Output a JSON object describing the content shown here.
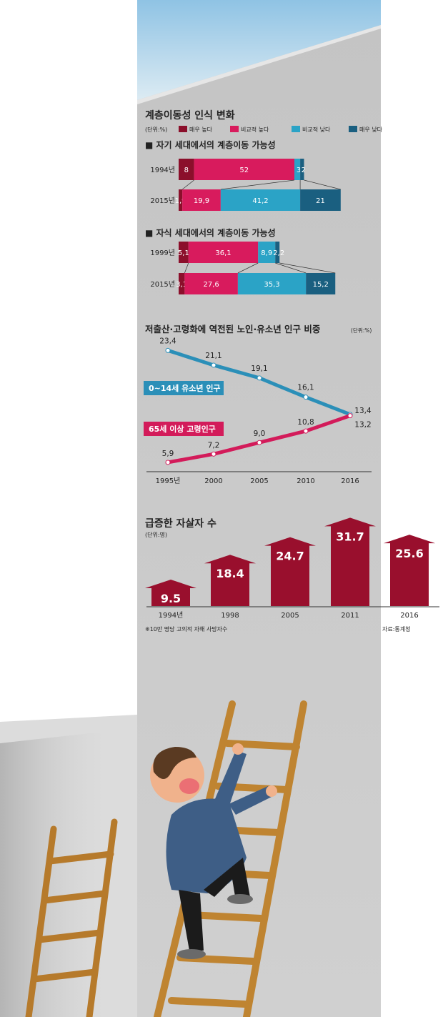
{
  "colors": {
    "very_high": "#8b0f2b",
    "relatively_high": "#d81b5d",
    "relatively_low": "#2ba3c6",
    "very_low": "#1a5f80",
    "youth_line": "#2b8fb8",
    "elderly_line": "#d31b5a",
    "suicide_bar": "#990f2d",
    "wall": "#c9c9c9",
    "sky": "#a9cfe6"
  },
  "mobility": {
    "title": "계층이동성 인식 변화",
    "unit": "(단위:%)",
    "legend": [
      "매우 높다",
      "비교적 높다",
      "비교적 낮다",
      "매우 낮다"
    ],
    "self_title": "■ 자기 세대에서의 계층이동 가능성",
    "child_title": "■ 자식 세대에서의 계층이동 가능성"
  },
  "population": {
    "title": "저출산·고령화에 역전된 노인·유소년 인구 비중",
    "unit": "(단위:%)",
    "youth_label": "0~14세 유소년 인구",
    "elderly_label": "65세 이상 고령인구"
  },
  "suicide": {
    "title": "급증한 자살자 수",
    "unit": "(단위:명)",
    "footnote": "※10만 명당 고의적 자해 사망자수",
    "source": "자료:통계청"
  },
  "chart_data": [
    {
      "type": "bar",
      "stacked": true,
      "orientation": "horizontal",
      "title": "자기 세대에서의 계층이동 가능성",
      "categories": [
        "1994년",
        "2015년"
      ],
      "series": [
        {
          "name": "매우 높다",
          "values": [
            8,
            1.9
          ],
          "labels": [
            "8",
            "1,9"
          ]
        },
        {
          "name": "비교적 높다",
          "values": [
            52,
            19.9
          ],
          "labels": [
            "52",
            "19,9"
          ]
        },
        {
          "name": "비교적 낮다",
          "values": [
            3,
            41.2
          ],
          "labels": [
            "3",
            "41,2"
          ]
        },
        {
          "name": "매우 낮다",
          "values": [
            2,
            21
          ],
          "labels": [
            "2",
            "21"
          ]
        }
      ]
    },
    {
      "type": "bar",
      "stacked": true,
      "orientation": "horizontal",
      "title": "자식 세대에서의 계층이동 가능성",
      "categories": [
        "1999년",
        "2015년"
      ],
      "series": [
        {
          "name": "매우 높다",
          "values": [
            5.1,
            3.1
          ],
          "labels": [
            "5,1",
            "3,1"
          ]
        },
        {
          "name": "비교적 높다",
          "values": [
            36.1,
            27.6
          ],
          "labels": [
            "36,1",
            "27,6"
          ]
        },
        {
          "name": "비교적 낮다",
          "values": [
            8.9,
            35.3
          ],
          "labels": [
            "8,9",
            "35,3"
          ]
        },
        {
          "name": "매우 낮다",
          "values": [
            2.2,
            15.2
          ],
          "labels": [
            "2,2",
            "15,2"
          ]
        }
      ]
    },
    {
      "type": "line",
      "title": "저출산·고령화에 역전된 노인·유소년 인구 비중",
      "categories": [
        "1995년",
        "2000",
        "2005",
        "2010",
        "2016"
      ],
      "ylim": [
        5,
        24
      ],
      "series": [
        {
          "name": "0~14세 유소년 인구",
          "values": [
            23.4,
            21.1,
            19.1,
            16.1,
            13.4
          ],
          "labels": [
            "23,4",
            "21,1",
            "19,1",
            "16,1",
            "13,4"
          ]
        },
        {
          "name": "65세 이상 고령인구",
          "values": [
            5.9,
            7.2,
            9.0,
            10.8,
            13.2
          ],
          "labels": [
            "5,9",
            "7,2",
            "9,0",
            "10,8",
            "13,2"
          ]
        }
      ]
    },
    {
      "type": "bar",
      "title": "급증한 자살자 수",
      "categories": [
        "1994년",
        "1998",
        "2005",
        "2011",
        "2016"
      ],
      "values": [
        9.5,
        18.4,
        24.7,
        31.7,
        25.6
      ],
      "labels": [
        "9.5",
        "18.4",
        "24.7",
        "31.7",
        "25.6"
      ]
    }
  ]
}
